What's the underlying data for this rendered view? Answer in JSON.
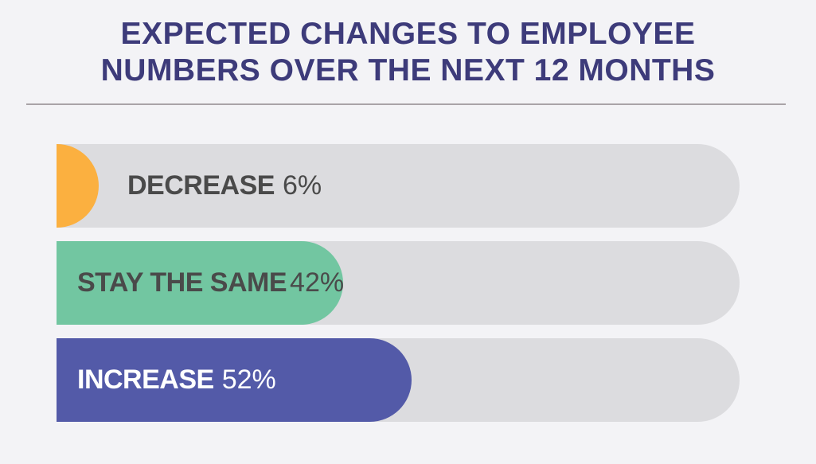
{
  "chart_data": {
    "type": "bar",
    "orientation": "horizontal",
    "title_lines": [
      "EXPECTED CHANGES TO EMPLOYEE",
      "NUMBERS OVER THE NEXT 12 MONTHS"
    ],
    "categories": [
      "DECREASE",
      "STAY THE SAME",
      "INCREASE"
    ],
    "values": [
      6,
      42,
      52
    ],
    "value_labels": [
      "6%",
      "42%",
      "52%"
    ],
    "colors": [
      "#fbb040",
      "#72c6a1",
      "#535aa8"
    ],
    "label_colors": [
      "#4a4a4a",
      "#4a4a4a",
      "#ffffff"
    ],
    "track_color": "#dcdcdf",
    "xlim": [
      0,
      100
    ]
  }
}
